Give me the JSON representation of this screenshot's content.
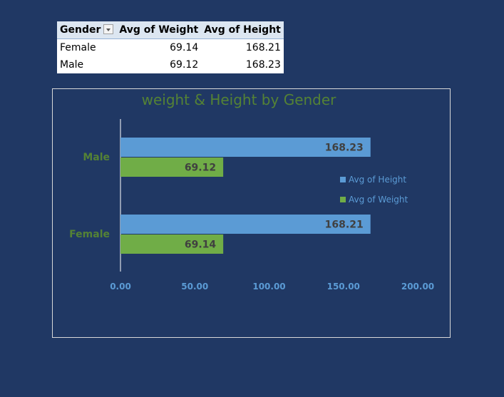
{
  "pivot": {
    "headers": {
      "gender": "Gender",
      "avg_weight": "Avg of Weight",
      "avg_height": "Avg of Height"
    },
    "rows": [
      {
        "gender": "Female",
        "avg_weight": "69.14",
        "avg_height": "168.21"
      },
      {
        "gender": "Male",
        "avg_weight": "69.12",
        "avg_height": "168.23"
      }
    ]
  },
  "chart_data": {
    "type": "bar",
    "orientation": "horizontal",
    "title": "weight & Height by Gender",
    "categories": [
      "Female",
      "Male"
    ],
    "series": [
      {
        "name": "Avg of Height",
        "values": [
          168.21,
          168.23
        ],
        "color": "#5b9bd5"
      },
      {
        "name": "Avg of Weight",
        "values": [
          69.14,
          69.12
        ],
        "color": "#70ad47"
      }
    ],
    "xlim": [
      0,
      200
    ],
    "x_ticks": [
      "0.00",
      "50.00",
      "100.00",
      "150.00",
      "200.00"
    ],
    "data_labels": true,
    "legend": "right",
    "grid": false,
    "category_color": "#548235",
    "tick_color": "#5b9bd5"
  }
}
